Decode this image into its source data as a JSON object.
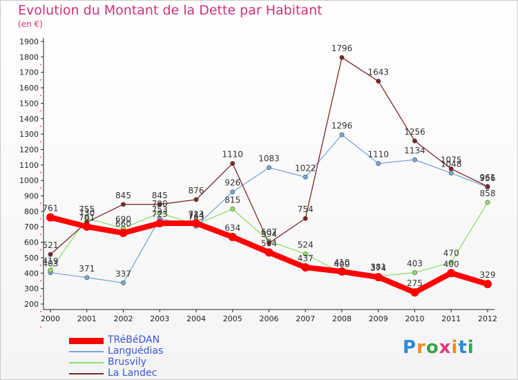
{
  "chart_data": {
    "type": "line",
    "title": "Evolution du Montant de la Dette par Habitant",
    "subtitle": "(en €)",
    "xlabel": "",
    "ylabel": "",
    "categories": [
      "2000",
      "2001",
      "2002",
      "2003",
      "2004",
      "2005",
      "2006",
      "2007",
      "2008",
      "2009",
      "2010",
      "2011",
      "2012"
    ],
    "ylim": [
      200,
      1900
    ],
    "yticks": [
      200,
      300,
      400,
      500,
      600,
      700,
      800,
      900,
      1000,
      1100,
      1200,
      1300,
      1400,
      1500,
      1600,
      1700,
      1800,
      1900
    ],
    "grid": false,
    "legend_position": "bottom-left",
    "series": [
      {
        "name": "TRéBéDAN",
        "color": "#ff0000",
        "style": "thick",
        "values": [
          761,
          701,
          660,
          723,
          723,
          634,
          534,
          437,
          410,
          374,
          275,
          400,
          329
        ]
      },
      {
        "name": "Languédias",
        "color": "#7aa6d4",
        "style": "thin",
        "values": [
          403,
          371,
          337,
          753,
          703,
          926,
          1083,
          1022,
          1296,
          1110,
          1134,
          1048,
          956
        ]
      },
      {
        "name": "Brusvily",
        "color": "#8ee06a",
        "style": "thin",
        "values": [
          419,
          755,
          690,
          790,
          714,
          815,
          607,
          524,
          400,
          381,
          403,
          470,
          858
        ]
      },
      {
        "name": "La Landec",
        "color": "#7a2628",
        "style": "thin",
        "values": [
          521,
          730,
          845,
          845,
          876,
          1110,
          594,
          754,
          1796,
          1643,
          1256,
          1075,
          961
        ]
      }
    ]
  },
  "logo": {
    "text": "Proxiti"
  }
}
